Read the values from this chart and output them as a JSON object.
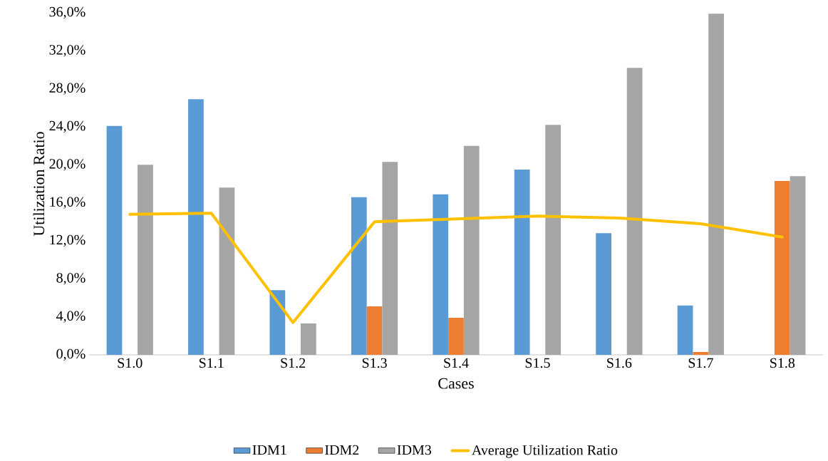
{
  "chart_data": {
    "type": "bar",
    "xlabel": "Cases",
    "ylabel": "Utilization Ratio",
    "categories": [
      "S1.0",
      "S1.1",
      "S1.2",
      "S1.3",
      "S1.4",
      "S1.5",
      "S1.6",
      "S1.7",
      "S1.8"
    ],
    "series": [
      {
        "name": "IDM1",
        "color": "#5b9bd5",
        "values": [
          24.1,
          26.9,
          6.8,
          16.6,
          16.9,
          19.5,
          12.8,
          5.2,
          0
        ]
      },
      {
        "name": "IDM2",
        "color": "#ed7d31",
        "values": [
          0,
          0,
          0,
          5.1,
          3.9,
          0,
          0,
          0.3,
          18.3
        ]
      },
      {
        "name": "IDM3",
        "color": "#a5a5a5",
        "values": [
          20.0,
          17.6,
          3.3,
          20.3,
          22.0,
          24.2,
          30.2,
          35.9,
          18.8
        ]
      },
      {
        "name": "Average Utilization Ratio",
        "type": "line",
        "color": "#ffc000",
        "values": [
          14.8,
          14.9,
          3.4,
          14.0,
          14.3,
          14.6,
          14.4,
          13.8,
          12.4
        ]
      }
    ],
    "ylim": [
      0,
      36
    ],
    "yticks": [
      {
        "value": 0,
        "label": "0,0%"
      },
      {
        "value": 4,
        "label": "4,0%"
      },
      {
        "value": 8,
        "label": "8,0%"
      },
      {
        "value": 12,
        "label": "12,0%"
      },
      {
        "value": 16,
        "label": "16,0%"
      },
      {
        "value": 20,
        "label": "20,0%"
      },
      {
        "value": 24,
        "label": "24,0%"
      },
      {
        "value": 28,
        "label": "28,0%"
      },
      {
        "value": 32,
        "label": "32,0%"
      },
      {
        "value": 36,
        "label": "36,0%"
      }
    ],
    "grid": false,
    "legend": "bottom"
  }
}
